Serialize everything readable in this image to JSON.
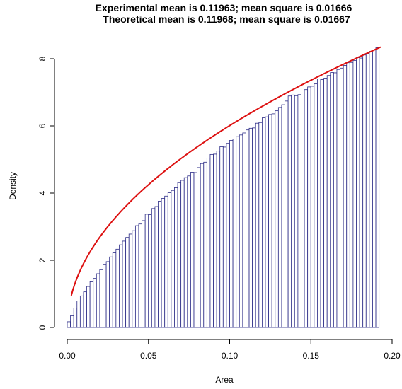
{
  "chart_data": {
    "type": "bar",
    "title": "Experimental mean is 0.11963; mean square is 0.01666",
    "subtitle": "Theoretical mean is 0.11968; mean square is 0.01667",
    "xlabel": "Area",
    "ylabel": "Density",
    "xlim": [
      0.0,
      0.2
    ],
    "ylim": [
      0,
      8.4
    ],
    "x_ticks": [
      "0.00",
      "0.05",
      "0.10",
      "0.15",
      "0.20"
    ],
    "y_ticks": [
      "0",
      "2",
      "4",
      "6",
      "8"
    ],
    "grid": false,
    "bin_width": 0.002,
    "bin_start": 0.0,
    "bin_heights": [
      0.17,
      0.35,
      0.58,
      0.79,
      0.94,
      1.06,
      1.22,
      1.36,
      1.46,
      1.6,
      1.72,
      1.88,
      1.96,
      2.1,
      2.22,
      2.33,
      2.46,
      2.57,
      2.68,
      2.78,
      2.88,
      3.03,
      3.08,
      3.18,
      3.37,
      3.36,
      3.54,
      3.6,
      3.76,
      3.84,
      3.91,
      4.01,
      4.08,
      4.16,
      4.31,
      4.38,
      4.46,
      4.51,
      4.62,
      4.61,
      4.76,
      4.88,
      4.92,
      5.04,
      5.15,
      5.16,
      5.25,
      5.38,
      5.37,
      5.48,
      5.57,
      5.61,
      5.68,
      5.73,
      5.79,
      5.88,
      5.93,
      5.94,
      6.08,
      6.1,
      6.24,
      6.27,
      6.34,
      6.36,
      6.45,
      6.55,
      6.63,
      6.74,
      6.89,
      6.92,
      6.9,
      6.93,
      7.04,
      7.08,
      7.16,
      7.18,
      7.25,
      7.4,
      7.38,
      7.42,
      7.5,
      7.59,
      7.58,
      7.68,
      7.72,
      7.8,
      7.88,
      7.89,
      7.95,
      8.03,
      8.02,
      8.11,
      8.15,
      8.22,
      8.26,
      8.33
    ],
    "curve": {
      "formula": "density = 19 * sqrt(x)",
      "x_max": 0.193
    },
    "colors": {
      "bar_stroke": "#2a2a86",
      "curve": "#dd1111"
    }
  }
}
